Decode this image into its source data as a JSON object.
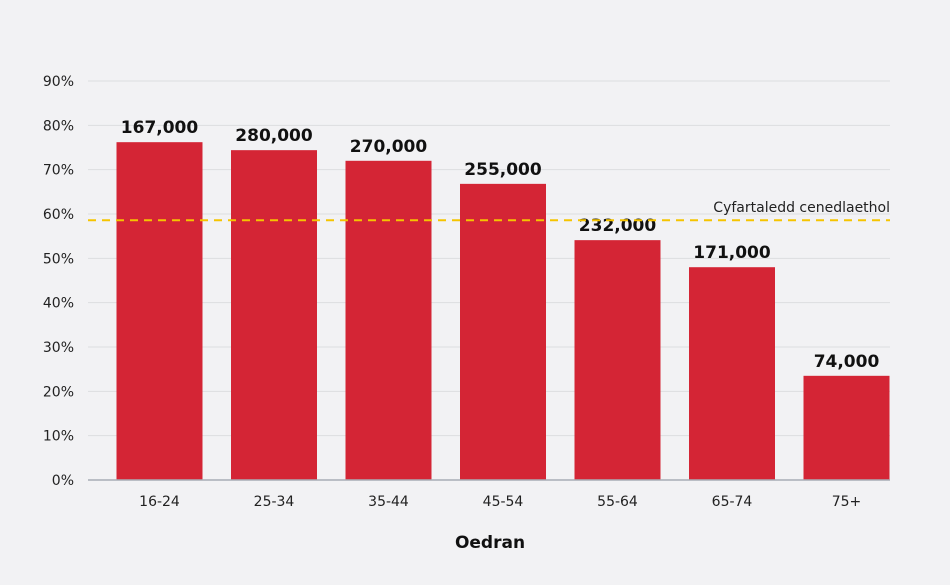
{
  "chart_data": {
    "type": "bar",
    "title": "",
    "xlabel": "Oedran",
    "ylabel": "",
    "categories": [
      "16-24",
      "25-34",
      "35-44",
      "45-54",
      "55-64",
      "65-74",
      "75+"
    ],
    "values": [
      76.2,
      74.4,
      72.0,
      66.8,
      54.1,
      48.0,
      23.5
    ],
    "data_labels": [
      "167,000",
      "280,000",
      "270,000",
      "255,000",
      "232,000",
      "171,000",
      "74,000"
    ],
    "ylim": [
      0,
      90
    ],
    "yticks": [
      0,
      10,
      20,
      30,
      40,
      50,
      60,
      70,
      80,
      90
    ],
    "ytick_labels": [
      "0%",
      "10%",
      "20%",
      "30%",
      "40%",
      "50%",
      "60%",
      "70%",
      "80%",
      "90%"
    ],
    "grid": true,
    "reference_line": {
      "label": "Cyfartaledd cenedlaethol",
      "value": 58.6,
      "color": "#f5c400"
    },
    "bar_color": "#d42535"
  }
}
